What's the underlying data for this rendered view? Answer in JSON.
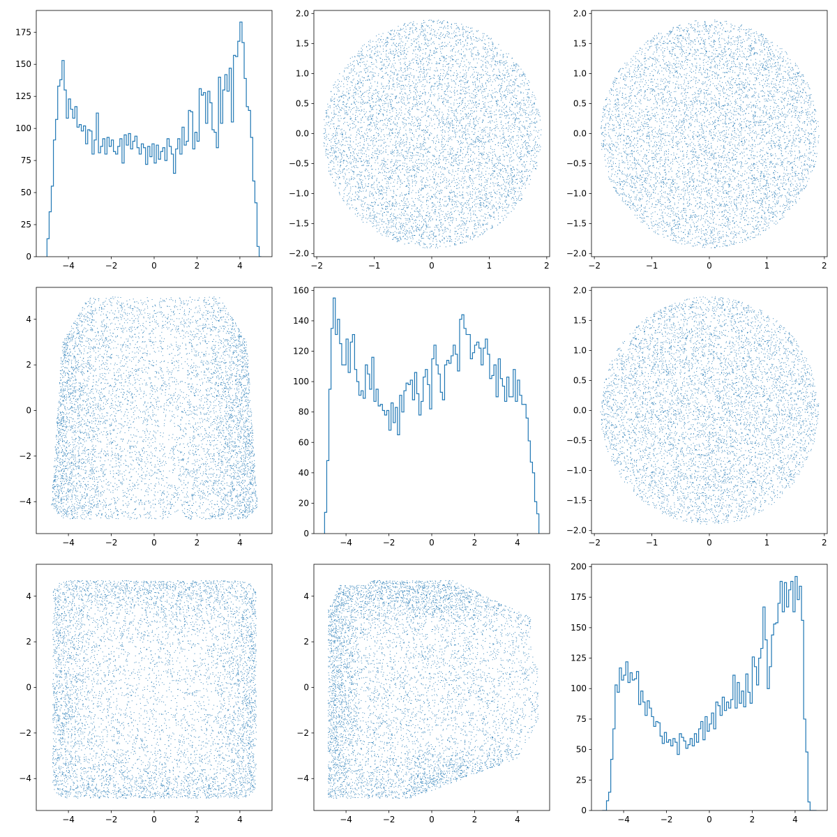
{
  "figure": {
    "layout": "3x3 corner/pair plot"
  },
  "chart_data": [
    {
      "type": "histogram",
      "row": 0,
      "col": 0,
      "color": "#1f77b4",
      "xlim": [
        -5.5,
        5.5
      ],
      "ylim": [
        0,
        192
      ],
      "xticks": [
        -4,
        -2,
        0,
        2,
        4
      ],
      "yticks": [
        0,
        25,
        50,
        75,
        100,
        125,
        150,
        175
      ],
      "bin_range": [
        -5,
        5
      ],
      "counts": [
        14,
        35,
        55,
        91,
        107,
        133,
        138,
        153,
        130,
        108,
        123,
        115,
        108,
        117,
        101,
        103,
        98,
        102,
        88,
        99,
        98,
        80,
        91,
        112,
        81,
        86,
        92,
        80,
        93,
        86,
        91,
        82,
        80,
        86,
        92,
        73,
        95,
        87,
        96,
        84,
        90,
        94,
        85,
        80,
        88,
        85,
        72,
        86,
        78,
        88,
        73,
        87,
        76,
        82,
        85,
        75,
        92,
        86,
        80,
        65,
        84,
        92,
        80,
        101,
        87,
        90,
        114,
        113,
        84,
        97,
        90,
        131,
        126,
        128,
        104,
        129,
        120,
        99,
        97,
        85,
        140,
        104,
        130,
        142,
        129,
        147,
        105,
        157,
        156,
        168,
        183,
        167,
        139,
        117,
        114,
        93,
        59,
        42,
        8,
        0
      ]
    },
    {
      "type": "scatter",
      "row": 0,
      "col": 1,
      "color": "#1f77b4",
      "shape": "disk",
      "xlim": [
        -2.05,
        2.05
      ],
      "ylim": [
        -2.05,
        2.05
      ],
      "xticks": [
        -2,
        -1,
        0,
        1,
        2
      ],
      "yticks": [
        -2.0,
        -1.5,
        -1.0,
        -0.5,
        0.0,
        0.5,
        1.0,
        1.5,
        2.0
      ],
      "n_points": 6500,
      "radius": 1.9
    },
    {
      "type": "scatter",
      "row": 0,
      "col": 2,
      "color": "#1f77b4",
      "shape": "disk",
      "xlim": [
        -2.05,
        2.05
      ],
      "ylim": [
        -2.05,
        2.05
      ],
      "xticks": [
        -2,
        -1,
        0,
        1,
        2
      ],
      "yticks": [
        -2.0,
        -1.5,
        -1.0,
        -0.5,
        0.0,
        0.5,
        1.0,
        1.5,
        2.0
      ],
      "n_points": 6500,
      "radius": 1.9
    },
    {
      "type": "scatter",
      "row": 1,
      "col": 0,
      "color": "#1f77b4",
      "shape": "trapezoid",
      "xlim": [
        -5.5,
        5.5
      ],
      "ylim": [
        -5.4,
        5.4
      ],
      "xticks": [
        -4,
        -2,
        0,
        2,
        4
      ],
      "yticks": [
        -4,
        -2,
        0,
        2,
        4
      ],
      "n_points": 7000,
      "edge_density": "sides"
    },
    {
      "type": "histogram",
      "row": 1,
      "col": 1,
      "color": "#1f77b4",
      "xlim": [
        -5.5,
        5.5
      ],
      "ylim": [
        0,
        162
      ],
      "xticks": [
        -4,
        -2,
        0,
        2,
        4
      ],
      "yticks": [
        0,
        20,
        40,
        60,
        80,
        100,
        120,
        140,
        160
      ],
      "bin_range": [
        -5,
        5
      ],
      "counts": [
        14,
        48,
        95,
        135,
        155,
        131,
        141,
        125,
        111,
        111,
        128,
        106,
        126,
        131,
        108,
        100,
        91,
        94,
        89,
        111,
        105,
        95,
        116,
        87,
        95,
        84,
        85,
        81,
        78,
        81,
        68,
        86,
        73,
        83,
        65,
        91,
        80,
        94,
        99,
        98,
        101,
        88,
        106,
        92,
        78,
        87,
        103,
        108,
        98,
        82,
        115,
        124,
        111,
        105,
        93,
        88,
        111,
        114,
        112,
        117,
        124,
        118,
        107,
        141,
        144,
        135,
        131,
        131,
        115,
        119,
        124,
        126,
        122,
        111,
        122,
        128,
        118,
        102,
        104,
        111,
        90,
        115,
        102,
        97,
        87,
        103,
        90,
        90,
        108,
        87,
        101,
        91,
        85,
        85,
        76,
        61,
        47,
        40,
        21,
        13
      ]
    },
    {
      "type": "scatter",
      "row": 1,
      "col": 2,
      "color": "#1f77b4",
      "shape": "disk",
      "xlim": [
        -2.05,
        2.05
      ],
      "ylim": [
        -2.05,
        2.05
      ],
      "xticks": [
        -2,
        -1,
        0,
        1,
        2
      ],
      "yticks": [
        -2.0,
        -1.5,
        -1.0,
        -0.5,
        0.0,
        0.5,
        1.0,
        1.5,
        2.0
      ],
      "n_points": 6500,
      "radius": 1.9
    },
    {
      "type": "scatter",
      "row": 2,
      "col": 0,
      "color": "#1f77b4",
      "shape": "rounded-square",
      "xlim": [
        -5.5,
        5.5
      ],
      "ylim": [
        -5.4,
        5.4
      ],
      "xticks": [
        -4,
        -2,
        0,
        2,
        4
      ],
      "yticks": [
        -4,
        -2,
        0,
        2,
        4
      ],
      "n_points": 7000,
      "edge_density": "perimeter"
    },
    {
      "type": "scatter",
      "row": 2,
      "col": 1,
      "color": "#1f77b4",
      "shape": "rounded-blob",
      "xlim": [
        -5.5,
        5.5
      ],
      "ylim": [
        -5.4,
        5.4
      ],
      "xticks": [
        -4,
        -2,
        0,
        2,
        4
      ],
      "yticks": [
        -4,
        -2,
        0,
        2,
        4
      ],
      "n_points": 7000,
      "edge_density": "top-left and bottom-right"
    },
    {
      "type": "histogram",
      "row": 2,
      "col": 2,
      "color": "#1f77b4",
      "xlim": [
        -5.5,
        5.5
      ],
      "ylim": [
        0,
        202
      ],
      "xticks": [
        -4,
        -2,
        0,
        2,
        4
      ],
      "yticks": [
        0,
        25,
        50,
        75,
        100,
        125,
        150,
        175,
        200
      ],
      "bin_range": [
        -5,
        5
      ],
      "counts": [
        0,
        0,
        8,
        15,
        42,
        67,
        103,
        97,
        117,
        107,
        111,
        122,
        105,
        113,
        107,
        108,
        114,
        87,
        98,
        89,
        78,
        90,
        84,
        77,
        69,
        73,
        72,
        61,
        55,
        64,
        56,
        58,
        53,
        59,
        56,
        46,
        63,
        60,
        57,
        51,
        54,
        59,
        53,
        63,
        56,
        67,
        73,
        58,
        77,
        65,
        71,
        80,
        67,
        89,
        86,
        78,
        93,
        82,
        89,
        84,
        91,
        111,
        84,
        105,
        88,
        98,
        85,
        112,
        97,
        88,
        126,
        118,
        103,
        125,
        133,
        167,
        140,
        100,
        118,
        144,
        153,
        154,
        170,
        188,
        163,
        187,
        167,
        181,
        188,
        163,
        192,
        173,
        184,
        156,
        75,
        48,
        7,
        0,
        0,
        0
      ]
    }
  ]
}
